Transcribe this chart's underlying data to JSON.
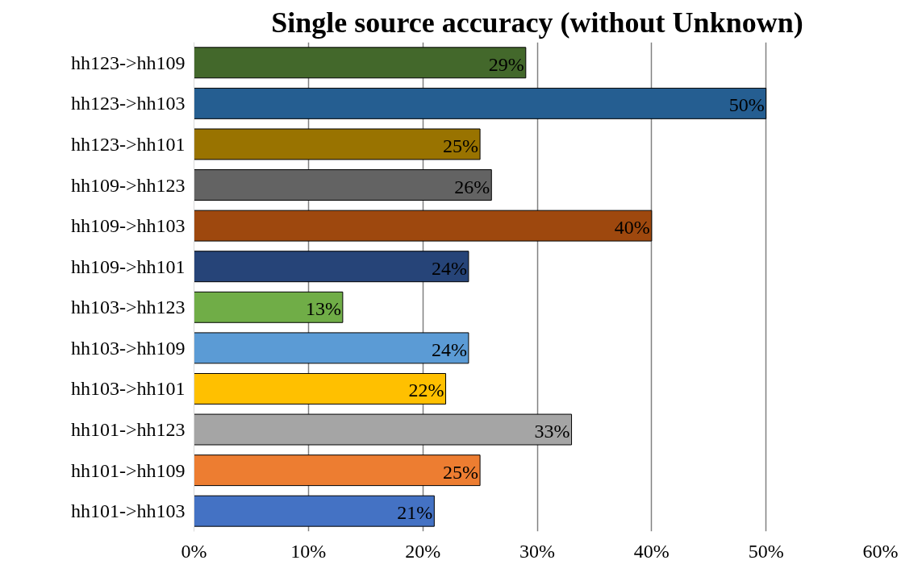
{
  "chart_data": {
    "type": "bar",
    "orientation": "horizontal",
    "title": "Single source accuracy (without Unknown)",
    "categories": [
      "hh123->hh109",
      "hh123->hh103",
      "hh123->hh101",
      "hh109->hh123",
      "hh109->hh103",
      "hh109->hh101",
      "hh103->hh123",
      "hh103->hh109",
      "hh103->hh101",
      "hh101->hh123",
      "hh101->hh109",
      "hh101->hh103"
    ],
    "values": [
      29,
      50,
      25,
      26,
      40,
      24,
      13,
      24,
      22,
      33,
      25,
      21
    ],
    "value_labels": [
      "29%",
      "50%",
      "25%",
      "26%",
      "40%",
      "24%",
      "13%",
      "24%",
      "22%",
      "33%",
      "25%",
      "21%"
    ],
    "colors": [
      "#43682b",
      "#255e91",
      "#997300",
      "#636363",
      "#9e480e",
      "#264478",
      "#70ad47",
      "#5b9bd5",
      "#ffc000",
      "#a5a5a5",
      "#ed7d31",
      "#4472c4"
    ],
    "xlim": [
      0,
      60
    ],
    "xticks": [
      {
        "value": 0,
        "label": "0%"
      },
      {
        "value": 10,
        "label": "10%"
      },
      {
        "value": 20,
        "label": "20%"
      },
      {
        "value": 30,
        "label": "30%"
      },
      {
        "value": 40,
        "label": "40%"
      },
      {
        "value": 50,
        "label": "50%"
      },
      {
        "value": 60,
        "label": "60%"
      }
    ],
    "grid": "x"
  }
}
